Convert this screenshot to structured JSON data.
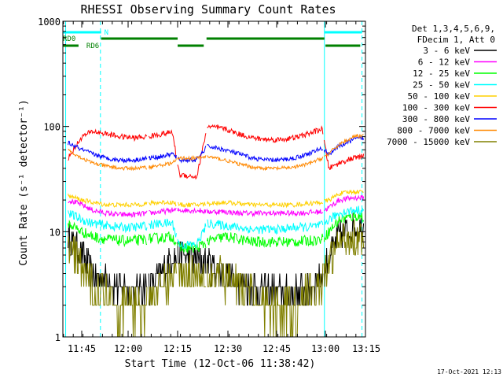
{
  "chart_data": {
    "type": "line",
    "title": "RHESSI Observing Summary Count Rates",
    "xlabel": "Start Time (12-Oct-06 11:38:42)",
    "ylabel": "Count Rate (s⁻¹ detector⁻¹)",
    "ylog": true,
    "ylim": [
      1,
      1000
    ],
    "xlim_minutes": [
      11.5,
      98.5
    ],
    "x_ticks": [
      {
        "t": 45,
        "label": "11:45"
      },
      {
        "t": 60,
        "label": "12:00"
      },
      {
        "t": 75,
        "label": "12:15"
      },
      {
        "t": 90,
        "label": "12:30"
      },
      {
        "t": 105,
        "label": "12:45"
      },
      {
        "t": 120,
        "label": "13:00"
      },
      {
        "t": 135,
        "label": "13:15"
      }
    ],
    "y_ticks": [
      {
        "v": 1,
        "label": "1"
      },
      {
        "v": 10,
        "label": "10"
      },
      {
        "v": 100,
        "label": "100"
      },
      {
        "v": 1000,
        "label": "1000"
      }
    ],
    "legend_header": [
      "Det 1,3,4,5,6,9,",
      "FDecim 1, Att 0"
    ],
    "legend_position": "right",
    "series": [
      {
        "name": "3 - 6 keV",
        "color": "#000000",
        "values": [
          9,
          6,
          4,
          3.5,
          3,
          2.8,
          3,
          4,
          6,
          6,
          5.5,
          5,
          4,
          3.5,
          3,
          2.8,
          2.6,
          2.6,
          2.8,
          3.5,
          6,
          9,
          11,
          11
        ]
      },
      {
        "name": "6 - 12 keV",
        "color": "#ff00ff",
        "values": [
          20,
          18,
          16,
          15,
          14.5,
          14.5,
          15,
          15.5,
          16,
          16,
          16,
          15.5,
          15.5,
          15,
          15,
          15,
          15,
          15,
          15.2,
          15.5,
          17,
          20,
          21,
          21
        ]
      },
      {
        "name": "12 - 25 keV",
        "color": "#00ff00",
        "values": [
          12,
          10,
          9,
          8.5,
          8.2,
          8.2,
          8.5,
          8.8,
          9,
          7,
          7,
          8,
          9,
          8.5,
          8,
          8,
          8,
          8,
          8.2,
          8.5,
          10,
          13,
          14,
          14
        ]
      },
      {
        "name": "25 - 50 keV",
        "color": "#00ffff",
        "values": [
          15,
          13,
          12,
          11.5,
          11,
          11,
          11.5,
          12,
          12,
          7.5,
          7.5,
          12,
          11.5,
          11,
          10.5,
          10.5,
          10.5,
          11,
          11,
          11.5,
          13,
          15,
          16,
          16
        ]
      },
      {
        "name": "50 - 100 keV",
        "color": "#ffd000",
        "values": [
          22,
          20,
          19,
          18,
          18,
          18,
          18.5,
          19,
          19,
          18,
          18,
          18.5,
          19,
          18.5,
          18,
          18,
          18,
          18,
          18.5,
          19,
          20,
          23,
          24,
          24
        ]
      },
      {
        "name": "100 - 300 keV",
        "color": "#ff0000",
        "values": [
          50,
          80,
          90,
          85,
          80,
          78,
          80,
          85,
          88,
          35,
          33,
          100,
          95,
          85,
          78,
          75,
          75,
          78,
          85,
          95,
          40,
          45,
          50,
          52
        ]
      },
      {
        "name": "300 - 800 keV",
        "color": "#0000ff",
        "values": [
          70,
          60,
          55,
          50,
          48,
          48,
          50,
          52,
          55,
          48,
          48,
          65,
          60,
          55,
          50,
          48,
          48,
          50,
          55,
          62,
          55,
          65,
          75,
          78
        ]
      },
      {
        "name": "800 - 7000 keV",
        "color": "#ff8800",
        "values": [
          60,
          50,
          45,
          42,
          40,
          40,
          41,
          43,
          45,
          50,
          50,
          52,
          48,
          44,
          41,
          40,
          40,
          41,
          44,
          50,
          55,
          68,
          80,
          82
        ]
      },
      {
        "name": "7000 - 15000 keV",
        "color": "#808000",
        "values": [
          7,
          4.5,
          3,
          2.5,
          2,
          2,
          2.2,
          3,
          4,
          4,
          4,
          4,
          3.5,
          3,
          2.5,
          2,
          2,
          2,
          2.5,
          3,
          5,
          8,
          9,
          9
        ]
      }
    ],
    "series_x_minutes": [
      13,
      17,
      20,
      24,
      28,
      32,
      36,
      40,
      43,
      45,
      50,
      53,
      58,
      62,
      66,
      70,
      74,
      78,
      82,
      86,
      88,
      91,
      95,
      98
    ],
    "gaps_minutes": [
      [
        35.8,
        36.2
      ],
      [
        44.2,
        44.4
      ],
      [
        52.6,
        52.9
      ],
      [
        86.4,
        86.6
      ]
    ],
    "cyan_vlines_minutes": [
      {
        "t": 12.3,
        "dashed": false
      },
      {
        "t": 22.3,
        "dashed": true
      },
      {
        "t": 86.7,
        "dashed": false
      },
      {
        "t": 97.5,
        "dashed": true
      }
    ],
    "flag_bars": [
      {
        "label": "N",
        "color": "#00ffff",
        "row": 1,
        "segments": [
          [
            11.5,
            22.5
          ],
          [
            86.7,
            97.5
          ]
        ]
      },
      {
        "label": "RD0",
        "color": "#008000",
        "row": 2,
        "segments": [
          [
            22.5,
            44.5
          ],
          [
            52.8,
            86.7
          ]
        ]
      },
      {
        "label": "RD6",
        "color": "#008000",
        "row": 3,
        "segments": [
          [
            11.5,
            16
          ],
          [
            44.5,
            52
          ],
          [
            87,
            97
          ]
        ]
      }
    ],
    "footer_timestamp": "17-Oct-2021 12:13"
  }
}
